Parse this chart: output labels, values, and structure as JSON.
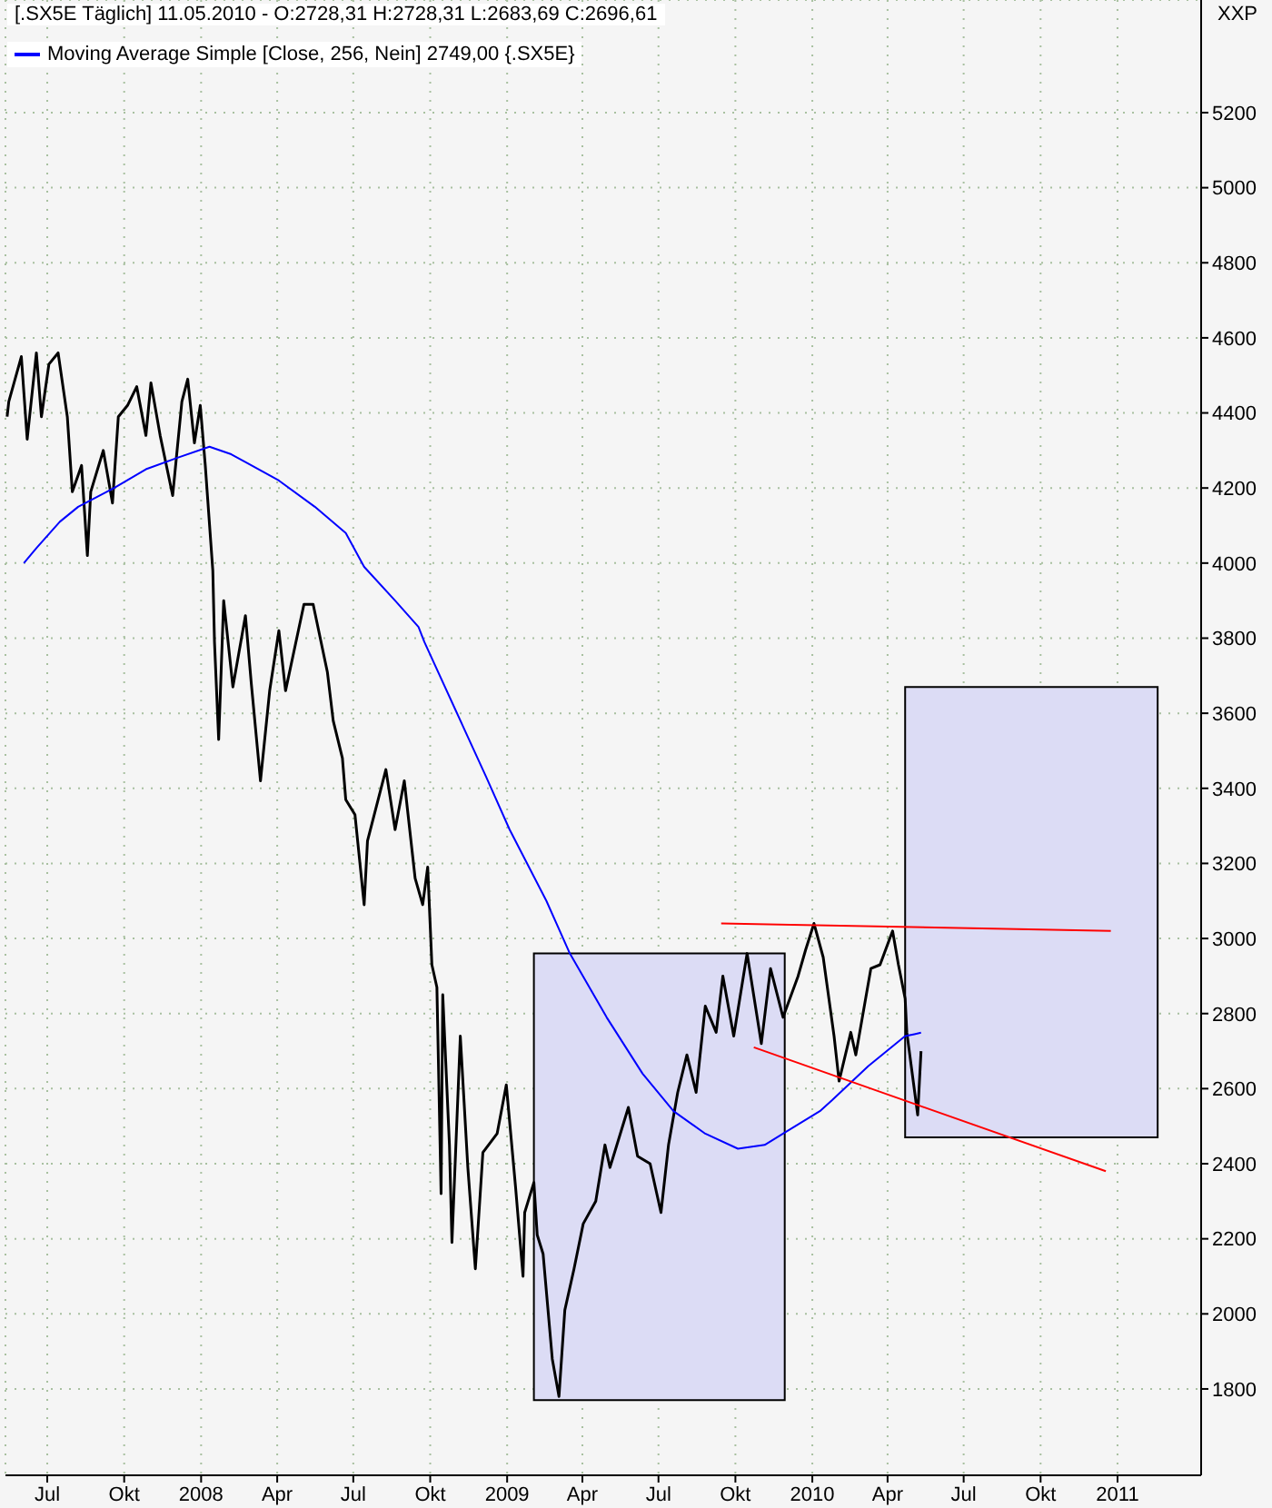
{
  "chart_data": {
    "type": "line",
    "title": "[.SX5E  Täglich] 11.05.2010 - O:2728,31 H:2728,31 L:2683,69 C:2696,61",
    "annotations": [
      "XXP"
    ],
    "xlim": [
      "2007-05-12",
      "2011-04-11"
    ],
    "xticks": [
      {
        "value": "2007-07-01",
        "label": "Jul"
      },
      {
        "value": "2007-10-01",
        "label": "Okt"
      },
      {
        "value": "2008-01-01",
        "label": "2008"
      },
      {
        "value": "2008-04-01",
        "label": "Apr"
      },
      {
        "value": "2008-07-01",
        "label": "Jul"
      },
      {
        "value": "2008-10-01",
        "label": "Okt"
      },
      {
        "value": "2009-01-01",
        "label": "2009"
      },
      {
        "value": "2009-04-01",
        "label": "Apr"
      },
      {
        "value": "2009-07-01",
        "label": "Jul"
      },
      {
        "value": "2009-10-01",
        "label": "Okt"
      },
      {
        "value": "2010-01-01",
        "label": "2010"
      },
      {
        "value": "2010-04-01",
        "label": "Apr"
      },
      {
        "value": "2010-07-01",
        "label": "Jul"
      },
      {
        "value": "2010-10-01",
        "label": "Okt"
      },
      {
        "value": "2011-01-01",
        "label": "2011"
      }
    ],
    "ylim": [
      1570,
      5500
    ],
    "yticks": [
      1800,
      2000,
      2200,
      2400,
      2600,
      2800,
      3000,
      3200,
      3400,
      3600,
      3800,
      4000,
      4200,
      4400,
      4600,
      4800,
      5000,
      5200
    ],
    "grid": true,
    "legend": "top left",
    "marker": "none",
    "line_style": "solid",
    "series": [
      {
        "color": "#000000",
        "x": [
          "2007-05-14",
          "2007-05-16",
          "2007-05-31",
          "2007-06-07",
          "2007-06-18",
          "2007-06-24",
          "2007-07-03",
          "2007-07-14",
          "2007-07-25",
          "2007-07-31",
          "2007-08-11",
          "2007-08-18",
          "2007-08-22",
          "2007-09-06",
          "2007-09-17",
          "2007-09-24",
          "2007-10-05",
          "2007-10-16",
          "2007-10-27",
          "2007-11-02",
          "2007-11-13",
          "2007-11-28",
          "2007-12-09",
          "2007-12-16",
          "2007-12-24",
          "2007-12-31",
          "2008-01-06",
          "2008-01-15",
          "2008-01-17",
          "2008-01-22",
          "2008-01-28",
          "2008-02-08",
          "2008-02-23",
          "2008-03-01",
          "2008-03-12",
          "2008-03-23",
          "2008-04-03",
          "2008-04-11",
          "2008-05-03",
          "2008-05-14",
          "2008-05-31",
          "2008-06-07",
          "2008-06-18",
          "2008-06-22",
          "2008-07-03",
          "2008-07-14",
          "2008-07-18",
          "2008-08-09",
          "2008-08-20",
          "2008-08-31",
          "2008-09-13",
          "2008-09-22",
          "2008-09-28",
          "2008-10-03",
          "2008-10-09",
          "2008-10-14",
          "2008-10-16",
          "2008-10-24",
          "2008-10-27",
          "2008-11-06",
          "2008-11-15",
          "2008-11-24",
          "2008-12-03",
          "2008-12-20",
          "2008-12-31",
          "2009-01-11",
          "2009-01-20",
          "2009-01-22",
          "2009-02-02",
          "2009-02-06",
          "2009-02-13",
          "2009-02-24",
          "2009-03-04",
          "2009-03-11",
          "2009-03-22",
          "2009-04-02",
          "2009-04-17",
          "2009-04-28",
          "2009-05-04",
          "2009-05-26",
          "2009-06-06",
          "2009-06-21",
          "2009-07-04",
          "2009-07-13",
          "2009-07-24",
          "2009-08-04",
          "2009-08-15",
          "2009-08-26",
          "2009-09-08",
          "2009-09-16",
          "2009-09-29",
          "2009-10-15",
          "2009-11-01",
          "2009-11-12",
          "2009-11-27",
          "2009-12-15",
          "2009-12-24",
          "2010-01-03",
          "2010-01-14",
          "2010-01-27",
          "2010-02-02",
          "2010-02-16",
          "2010-02-22",
          "2010-03-12",
          "2010-03-23",
          "2010-04-07",
          "2010-04-14",
          "2010-04-22",
          "2010-04-24",
          "2010-05-07",
          "2010-05-11"
        ],
        "values": [
          4390,
          4430,
          4550,
          4330,
          4560,
          4390,
          4530,
          4560,
          4390,
          4190,
          4260,
          4020,
          4190,
          4300,
          4160,
          4390,
          4420,
          4470,
          4340,
          4480,
          4340,
          4180,
          4430,
          4490,
          4320,
          4420,
          4260,
          3980,
          3790,
          3530,
          3900,
          3670,
          3860,
          3680,
          3420,
          3660,
          3820,
          3660,
          3890,
          3890,
          3710,
          3580,
          3480,
          3370,
          3330,
          3090,
          3260,
          3450,
          3290,
          3420,
          3160,
          3090,
          3190,
          2930,
          2870,
          2320,
          2850,
          2450,
          2190,
          2740,
          2390,
          2120,
          2430,
          2480,
          2610,
          2340,
          2100,
          2270,
          2350,
          2210,
          2160,
          1880,
          1780,
          2010,
          2120,
          2240,
          2300,
          2450,
          2390,
          2550,
          2420,
          2400,
          2270,
          2450,
          2590,
          2690,
          2590,
          2820,
          2750,
          2900,
          2740,
          2960,
          2720,
          2920,
          2790,
          2900,
          2970,
          3040,
          2950,
          2740,
          2620,
          2750,
          2690,
          2920,
          2930,
          3020,
          2930,
          2840,
          2750,
          2530,
          2700
        ]
      },
      {
        "name": "Moving Average Simple [Close, 256, Nein] 2749,00 {.SX5E}",
        "color": "#0000ff",
        "x": [
          "2007-06-03",
          "2007-06-18",
          "2007-07-16",
          "2007-08-07",
          "2007-09-19",
          "2007-10-27",
          "2007-12-03",
          "2008-01-11",
          "2008-02-06",
          "2008-04-03",
          "2008-05-16",
          "2008-06-22",
          "2008-07-14",
          "2008-08-20",
          "2008-09-17",
          "2008-09-24",
          "2008-10-31",
          "2008-12-07",
          "2009-01-04",
          "2009-02-17",
          "2009-03-17",
          "2009-04-30",
          "2009-06-12",
          "2009-07-19",
          "2009-08-26",
          "2009-10-04",
          "2009-11-05",
          "2009-11-27",
          "2010-01-10",
          "2010-01-25",
          "2010-03-09",
          "2010-04-22",
          "2010-05-03",
          "2010-05-11"
        ],
        "values": [
          4000,
          4040,
          4110,
          4150,
          4200,
          4250,
          4280,
          4310,
          4290,
          4220,
          4150,
          4080,
          3990,
          3900,
          3830,
          3790,
          3610,
          3430,
          3290,
          3100,
          2960,
          2790,
          2640,
          2540,
          2480,
          2440,
          2450,
          2480,
          2540,
          2570,
          2660,
          2740,
          2745,
          2749
        ]
      },
      {
        "color": "#ff0000",
        "x": [
          "2009-09-14",
          "2010-12-24"
        ],
        "values": [
          3040,
          3020
        ]
      },
      {
        "color": "#ff0000",
        "x": [
          "2009-10-23",
          "2010-12-18"
        ],
        "values": [
          2710,
          2380
        ]
      },
      {
        "color": "#dcdcf5",
        "x": [
          "2009-02-02",
          "2009-11-29"
        ],
        "values": [
          null,
          null
        ],
        "lower": [
          1770,
          1770
        ],
        "upper": [
          2960,
          2960
        ]
      },
      {
        "color": "#dcdcf5",
        "x": [
          "2010-04-22",
          "2011-02-18"
        ],
        "values": [
          null,
          null
        ],
        "lower": [
          2470,
          2470
        ],
        "upper": [
          3670,
          3670
        ]
      }
    ]
  }
}
